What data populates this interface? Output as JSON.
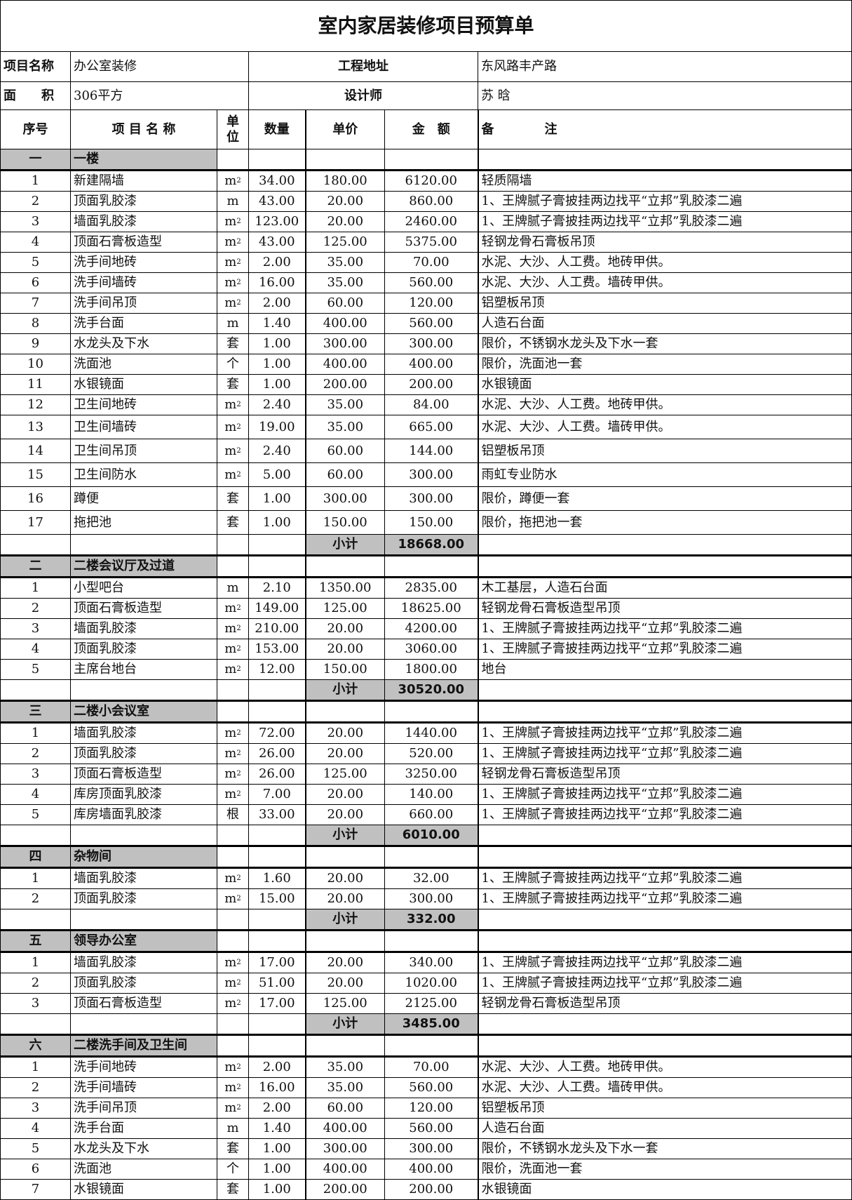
{
  "title": "室内家居装修项目预算单",
  "info": {
    "project_label": "项目名称",
    "project_value": "办公室装修",
    "address_label": "工程地址",
    "address_value": "东风路丰产路",
    "area_label": "面　　积",
    "area_value": "306平方",
    "designer_label": "设计师",
    "designer_value": "苏 晗"
  },
  "headers": [
    "序号",
    "项 目 名 称",
    "单位",
    "数量",
    "单价",
    "金　额",
    "备　　　　注"
  ],
  "sections": [
    {
      "num": "一",
      "name": "一楼",
      "subtotal_label": "小计",
      "subtotal": "18668.00",
      "items": [
        [
          "1",
          "新建隔墙",
          "m²",
          "34.00",
          "180.00",
          "6120.00",
          "轻质隔墙"
        ],
        [
          "2",
          "顶面乳胶漆",
          "m",
          "43.00",
          "20.00",
          "860.00",
          "1、王牌腻子膏披挂两边找平“立邦”乳胶漆二遍"
        ],
        [
          "3",
          "墙面乳胶漆",
          "m²",
          "123.00",
          "20.00",
          "2460.00",
          "1、王牌腻子膏披挂两边找平“立邦”乳胶漆二遍"
        ],
        [
          "4",
          "顶面石膏板造型",
          "m²",
          "43.00",
          "125.00",
          "5375.00",
          "轻钢龙骨石膏板吊顶"
        ],
        [
          "5",
          "洗手间地砖",
          "m²",
          "2.00",
          "35.00",
          "70.00",
          "水泥、大沙、人工费。地砖甲供。"
        ],
        [
          "6",
          "洗手间墙砖",
          "m²",
          "16.00",
          "35.00",
          "560.00",
          "水泥、大沙、人工费。墙砖甲供。"
        ],
        [
          "7",
          "洗手间吊顶",
          "m²",
          "2.00",
          "60.00",
          "120.00",
          "铝塑板吊顶"
        ],
        [
          "8",
          "洗手台面",
          "m",
          "1.40",
          "400.00",
          "560.00",
          "人造石台面"
        ],
        [
          "9",
          "水龙头及下水",
          "套",
          "1.00",
          "300.00",
          "300.00",
          "限价，不锈钢水龙头及下水一套"
        ],
        [
          "10",
          "洗面池",
          "个",
          "1.00",
          "400.00",
          "400.00",
          "限价，洗面池一套"
        ],
        [
          "11",
          "水银镜面",
          "套",
          "1.00",
          "200.00",
          "200.00",
          "水银镜面"
        ],
        [
          "12",
          "卫生间地砖",
          "m²",
          "2.40",
          "35.00",
          "84.00",
          "水泥、大沙、人工费。地砖甲供。"
        ],
        [
          "13",
          "卫生间墙砖",
          "m²",
          "19.00",
          "35.00",
          "665.00",
          "水泥、大沙、人工费。墙砖甲供。"
        ],
        [
          "14",
          "卫生间吊顶",
          "m²",
          "2.40",
          "60.00",
          "144.00",
          "铝塑板吊顶"
        ],
        [
          "15",
          "卫生间防水",
          "m²",
          "5.00",
          "60.00",
          "300.00",
          "雨虹专业防水"
        ],
        [
          "16",
          "蹲便",
          "套",
          "1.00",
          "300.00",
          "300.00",
          "限价，蹲便一套"
        ],
        [
          "17",
          "拖把池",
          "套",
          "1.00",
          "150.00",
          "150.00",
          "限价，拖把池一套"
        ]
      ]
    },
    {
      "num": "二",
      "name": "二楼会议厅及过道",
      "subtotal_label": "小计",
      "subtotal": "30520.00",
      "items": [
        [
          "1",
          "小型吧台",
          "m",
          "2.10",
          "1350.00",
          "2835.00",
          "木工基层，人造石台面"
        ],
        [
          "2",
          "顶面石膏板造型",
          "m²",
          "149.00",
          "125.00",
          "18625.00",
          "轻钢龙骨石膏板造型吊顶"
        ],
        [
          "3",
          "墙面乳胶漆",
          "m²",
          "210.00",
          "20.00",
          "4200.00",
          "1、王牌腻子膏披挂两边找平“立邦”乳胶漆二遍"
        ],
        [
          "4",
          "顶面乳胶漆",
          "m²",
          "153.00",
          "20.00",
          "3060.00",
          "1、王牌腻子膏披挂两边找平“立邦”乳胶漆二遍"
        ],
        [
          "5",
          "主席台地台",
          "m²",
          "12.00",
          "150.00",
          "1800.00",
          "地台"
        ]
      ]
    },
    {
      "num": "三",
      "name": "二楼小会议室",
      "subtotal_label": "小计",
      "subtotal": "6010.00",
      "items": [
        [
          "1",
          "墙面乳胶漆",
          "m²",
          "72.00",
          "20.00",
          "1440.00",
          "1、王牌腻子膏披挂两边找平“立邦”乳胶漆二遍"
        ],
        [
          "2",
          "顶面乳胶漆",
          "m²",
          "26.00",
          "20.00",
          "520.00",
          "1、王牌腻子膏披挂两边找平“立邦”乳胶漆二遍"
        ],
        [
          "3",
          "顶面石膏板造型",
          "m²",
          "26.00",
          "125.00",
          "3250.00",
          "轻钢龙骨石膏板造型吊顶"
        ],
        [
          "4",
          "库房顶面乳胶漆",
          "m²",
          "7.00",
          "20.00",
          "140.00",
          "1、王牌腻子膏披挂两边找平“立邦”乳胶漆二遍"
        ],
        [
          "5",
          "库房墙面乳胶漆",
          "根",
          "33.00",
          "20.00",
          "660.00",
          "1、王牌腻子膏披挂两边找平“立邦”乳胶漆二遍"
        ]
      ]
    },
    {
      "num": "四",
      "name": "杂物间",
      "subtotal_label": "小计",
      "subtotal": "332.00",
      "items": [
        [
          "1",
          "墙面乳胶漆",
          "m²",
          "1.60",
          "20.00",
          "32.00",
          "1、王牌腻子膏披挂两边找平“立邦”乳胶漆二遍"
        ],
        [
          "2",
          "顶面乳胶漆",
          "m²",
          "15.00",
          "20.00",
          "300.00",
          "1、王牌腻子膏披挂两边找平“立邦”乳胶漆二遍"
        ]
      ]
    },
    {
      "num": "五",
      "name": "领导办公室",
      "subtotal_label": "小计",
      "subtotal": "3485.00",
      "items": [
        [
          "1",
          "墙面乳胶漆",
          "m²",
          "17.00",
          "20.00",
          "340.00",
          "1、王牌腻子膏披挂两边找平“立邦”乳胶漆二遍"
        ],
        [
          "2",
          "顶面乳胶漆",
          "m²",
          "51.00",
          "20.00",
          "1020.00",
          "1、王牌腻子膏披挂两边找平“立邦”乳胶漆二遍"
        ],
        [
          "3",
          "顶面石膏板造型",
          "m²",
          "17.00",
          "125.00",
          "2125.00",
          "轻钢龙骨石膏板造型吊顶"
        ]
      ]
    },
    {
      "num": "六",
      "name": "二楼洗手间及卫生间",
      "items": [
        [
          "1",
          "洗手间地砖",
          "m²",
          "2.00",
          "35.00",
          "70.00",
          "水泥、大沙、人工费。地砖甲供。"
        ],
        [
          "2",
          "洗手间墙砖",
          "m²",
          "16.00",
          "35.00",
          "560.00",
          "水泥、大沙、人工费。墙砖甲供。"
        ],
        [
          "3",
          "洗手间吊顶",
          "m²",
          "2.00",
          "60.00",
          "120.00",
          "铝塑板吊顶"
        ],
        [
          "4",
          "洗手台面",
          "m",
          "1.40",
          "400.00",
          "560.00",
          "人造石台面"
        ],
        [
          "5",
          "水龙头及下水",
          "套",
          "1.00",
          "300.00",
          "300.00",
          "限价，不锈钢水龙头及下水一套"
        ],
        [
          "6",
          "洗面池",
          "个",
          "1.00",
          "400.00",
          "400.00",
          "限价，洗面池一套"
        ],
        [
          "7",
          "水银镜面",
          "套",
          "1.00",
          "200.00",
          "200.00",
          "水银镜面"
        ]
      ]
    }
  ],
  "colors": {
    "section_fill": "#c0c0c0",
    "border": "#000000"
  }
}
